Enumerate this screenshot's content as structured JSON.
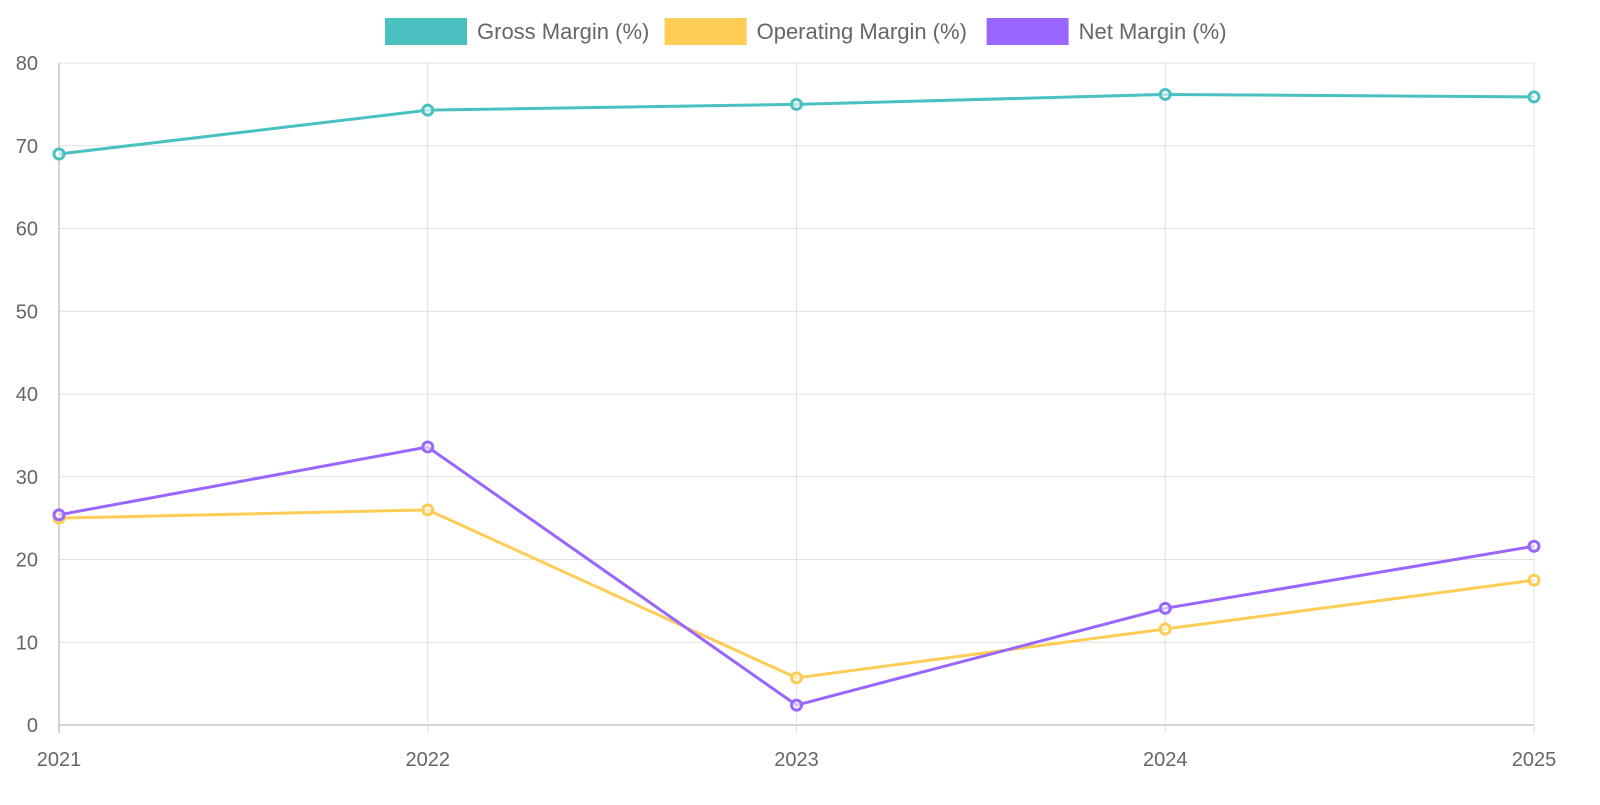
{
  "chart_data": {
    "type": "line",
    "title": "",
    "xlabel": "",
    "ylabel": "",
    "categories": [
      "2021",
      "2022",
      "2023",
      "2024",
      "2025"
    ],
    "ylim": [
      0,
      80
    ],
    "yticks": [
      0,
      10,
      20,
      30,
      40,
      50,
      60,
      70,
      80
    ],
    "grid": true,
    "legend_position": "top-center",
    "series": [
      {
        "name": "Gross Margin (%)",
        "color": "#4BC0C0",
        "values": [
          69.0,
          74.3,
          75.0,
          76.2,
          75.9
        ]
      },
      {
        "name": "Operating Margin (%)",
        "color": "#FFCD56",
        "values": [
          25.0,
          26.0,
          5.7,
          11.6,
          17.5
        ]
      },
      {
        "name": "Net Margin (%)",
        "color": "#9966FF",
        "values": [
          25.4,
          33.6,
          2.4,
          14.1,
          21.6
        ]
      }
    ]
  }
}
